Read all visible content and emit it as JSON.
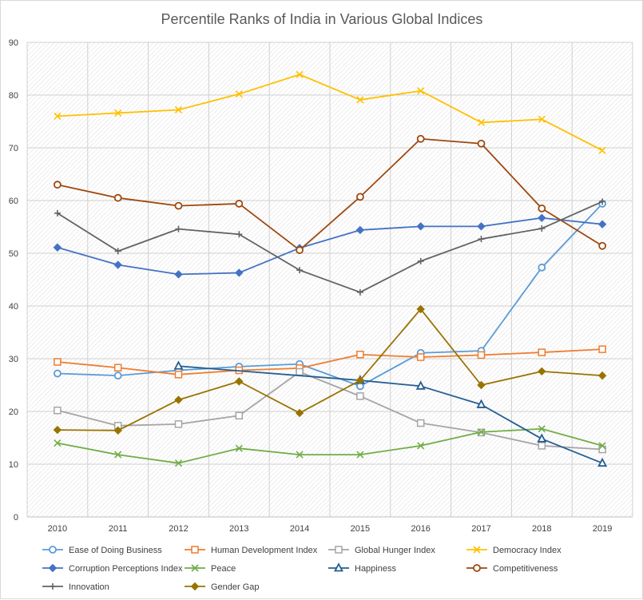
{
  "chart_data": {
    "type": "line",
    "title": "Percentile Ranks of India in Various Global Indices",
    "xlabel": "",
    "ylabel": "",
    "ylim": [
      0,
      90
    ],
    "yticks": [
      0,
      10,
      20,
      30,
      40,
      50,
      60,
      70,
      80,
      90
    ],
    "grid": true,
    "legend_position": "bottom",
    "categories": [
      "2010",
      "2011",
      "2012",
      "2013",
      "2014",
      "2015",
      "2016",
      "2017",
      "2018",
      "2019"
    ],
    "series": [
      {
        "name": "Ease of Doing Business",
        "color": "#5b9bd5",
        "marker": "circle",
        "values": [
          27.2,
          26.8,
          27.8,
          28.5,
          29.0,
          24.8,
          31.1,
          31.5,
          47.3,
          59.4
        ]
      },
      {
        "name": "Human Development Index",
        "color": "#ed7d31",
        "marker": "square",
        "values": [
          29.4,
          28.3,
          27.0,
          27.8,
          28.2,
          30.8,
          30.3,
          30.7,
          31.2,
          31.8
        ]
      },
      {
        "name": "Global Hunger Index",
        "color": "#a5a5a5",
        "marker": "square",
        "values": [
          20.2,
          17.3,
          17.6,
          19.2,
          27.5,
          22.9,
          17.8,
          16.0,
          13.5,
          12.8
        ]
      },
      {
        "name": "Democracy Index",
        "color": "#ffc000",
        "marker": "x",
        "values": [
          76.0,
          76.6,
          77.2,
          80.2,
          83.9,
          79.1,
          80.8,
          74.8,
          75.4,
          69.5
        ]
      },
      {
        "name": "Corruption Perceptions Index",
        "color": "#4472c4",
        "marker": "diamond",
        "values": [
          51.1,
          47.8,
          46.0,
          46.3,
          51.0,
          54.4,
          55.1,
          55.1,
          56.7,
          55.5
        ]
      },
      {
        "name": "Peace",
        "color": "#70ad47",
        "marker": "x",
        "values": [
          14.0,
          11.8,
          10.2,
          13.0,
          11.8,
          11.8,
          13.5,
          16.1,
          16.7,
          13.5
        ]
      },
      {
        "name": "Happiness",
        "color": "#255e91",
        "marker": "triangle",
        "values": [
          null,
          null,
          28.6,
          null,
          null,
          25.9,
          24.8,
          21.3,
          14.8,
          10.2
        ]
      },
      {
        "name": "Competitiveness",
        "color": "#9e480e",
        "marker": "circle",
        "values": [
          63.0,
          60.5,
          59.0,
          59.4,
          50.6,
          60.7,
          71.7,
          70.8,
          58.5,
          51.4
        ]
      },
      {
        "name": "Innovation",
        "color": "#636363",
        "marker": "plus",
        "values": [
          57.6,
          50.4,
          54.6,
          53.6,
          46.8,
          42.6,
          48.5,
          52.7,
          54.7,
          59.8
        ]
      },
      {
        "name": "Gender Gap",
        "color": "#997300",
        "marker": "diamond",
        "values": [
          16.5,
          16.4,
          22.2,
          25.7,
          19.7,
          25.9,
          39.4,
          25.0,
          27.6,
          26.8
        ]
      }
    ]
  }
}
